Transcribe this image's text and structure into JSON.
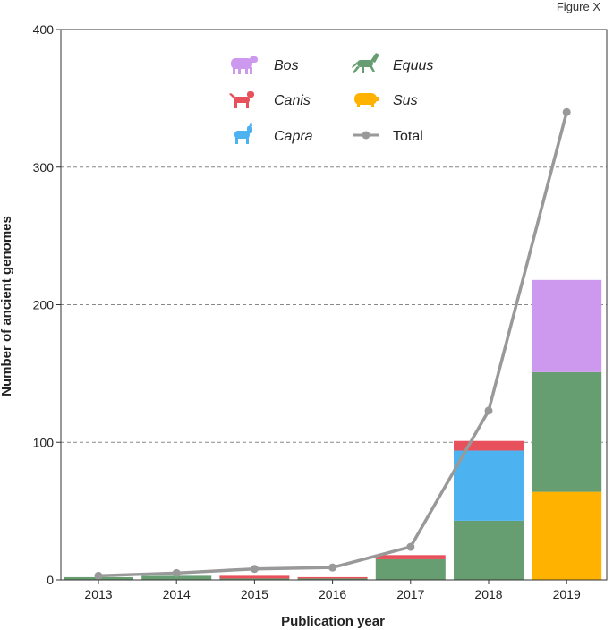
{
  "figure_label": "Figure X",
  "colors": {
    "Bos": "#cc99ee",
    "Canis": "#e8505b",
    "Capra": "#4db3f0",
    "Equus": "#669e72",
    "Sus": "#ffb300",
    "Total": "#999999",
    "grid": "#888888",
    "axis": "#333333"
  },
  "chart_data": {
    "type": "bar",
    "stacked": true,
    "title": "",
    "xlabel": "Publication year",
    "ylabel": "Number of ancient genomes",
    "categories": [
      "2013",
      "2014",
      "2015",
      "2016",
      "2017",
      "2018",
      "2019"
    ],
    "ylim": [
      0,
      400
    ],
    "yticks": [
      0,
      100,
      200,
      300,
      400
    ],
    "gridlines": [
      100,
      200,
      300
    ],
    "series": [
      {
        "name": "Sus",
        "italic": true,
        "values": [
          0,
          0,
          0,
          0,
          0,
          0,
          64
        ]
      },
      {
        "name": "Equus",
        "italic": true,
        "values": [
          2,
          3,
          1,
          1,
          15,
          43,
          87
        ]
      },
      {
        "name": "Capra",
        "italic": true,
        "values": [
          0,
          0,
          0,
          0,
          0,
          51,
          0
        ]
      },
      {
        "name": "Canis",
        "italic": true,
        "values": [
          0,
          0,
          2,
          1,
          3,
          7,
          0
        ]
      },
      {
        "name": "Bos",
        "italic": true,
        "values": [
          0,
          0,
          0,
          0,
          0,
          0,
          67
        ]
      }
    ],
    "line_series": {
      "name": "Total",
      "italic": false,
      "values": [
        3,
        5,
        8,
        9,
        24,
        123,
        340
      ]
    },
    "legend": {
      "position": "top-center",
      "columns": [
        [
          "Bos",
          "Canis",
          "Capra"
        ],
        [
          "Equus",
          "Sus",
          "Total"
        ]
      ]
    }
  }
}
